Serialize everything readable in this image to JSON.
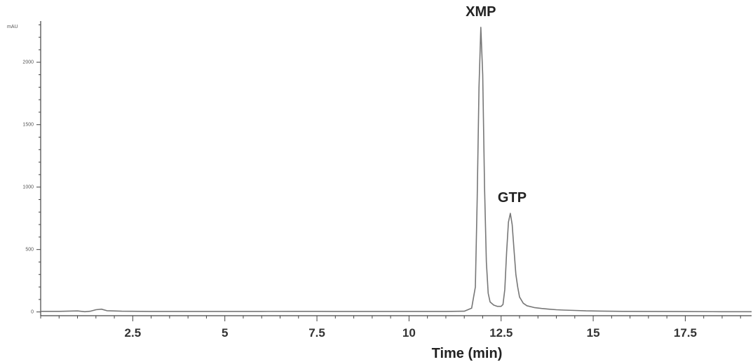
{
  "chart_data": {
    "type": "line",
    "title": "",
    "xlabel": "Time (min)",
    "ylabel": "mAU",
    "xlim": [
      0,
      19.3
    ],
    "ylim": [
      -30,
      2330
    ],
    "x_ticks": [
      2.5,
      5,
      7.5,
      10,
      12.5,
      15,
      17.5
    ],
    "x_tick_labels": [
      "2.5",
      "5",
      "7.5",
      "10",
      "12.5",
      "15",
      "17.5"
    ],
    "y_ticks": [
      0,
      500,
      1000,
      1500,
      2000
    ],
    "y_tick_labels": [
      "0",
      "500",
      "1000",
      "1500",
      "2000"
    ],
    "grid": false,
    "series": [
      {
        "x": [
          0,
          0.5,
          1.0,
          1.2,
          1.35,
          1.5,
          1.65,
          1.8,
          2.2,
          3,
          4,
          5,
          6,
          7,
          7.5,
          8,
          9,
          10,
          11,
          11.5,
          11.7,
          11.8,
          11.85,
          11.9,
          11.95,
          12.0,
          12.05,
          12.1,
          12.15,
          12.2,
          12.3,
          12.4,
          12.5,
          12.55,
          12.6,
          12.65,
          12.7,
          12.75,
          12.8,
          12.85,
          12.9,
          12.95,
          13.0,
          13.1,
          13.2,
          13.4,
          13.6,
          13.8,
          14.0,
          14.2,
          14.5,
          14.8,
          15.2,
          15.8,
          16.5,
          17.5,
          18.5,
          19.3
        ],
        "values": [
          5,
          5,
          8,
          2,
          6,
          18,
          22,
          10,
          6,
          4,
          4,
          4,
          4,
          5,
          5,
          4,
          4,
          4,
          4,
          6,
          30,
          200,
          900,
          1800,
          2280,
          1900,
          1000,
          400,
          150,
          80,
          55,
          45,
          45,
          60,
          180,
          480,
          720,
          790,
          700,
          500,
          300,
          200,
          120,
          70,
          50,
          35,
          28,
          22,
          18,
          15,
          12,
          9,
          7,
          5,
          4,
          3,
          2,
          2
        ]
      }
    ],
    "annotations": [
      {
        "text": "XMP",
        "x": 11.95,
        "y": 2280
      },
      {
        "text": "GTP",
        "x": 12.8,
        "y": 790
      }
    ],
    "colors": {
      "line": "#777777",
      "axis": "#444444",
      "text": "#222222"
    }
  }
}
